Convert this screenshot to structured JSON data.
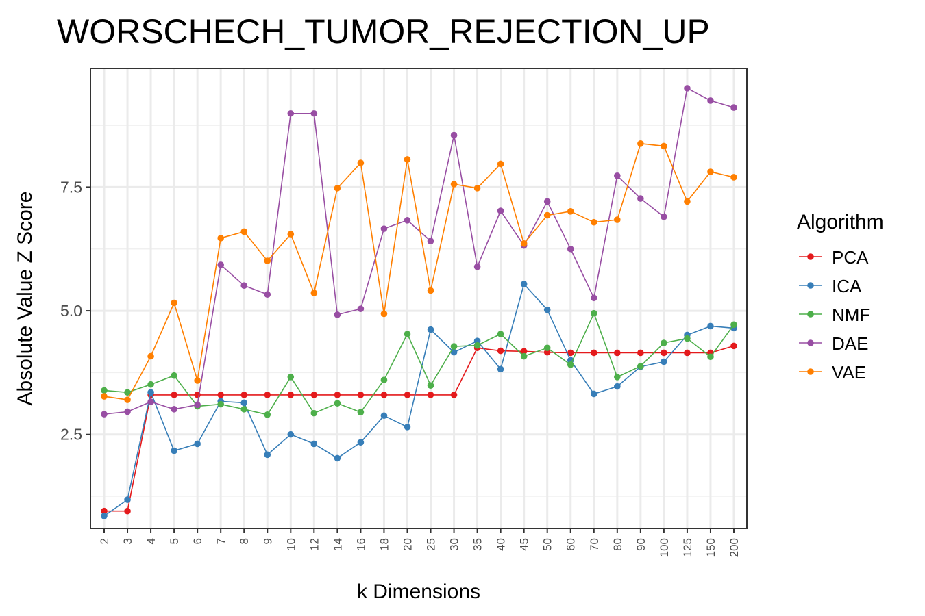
{
  "chart_data": {
    "type": "line",
    "title": "WORSCHECH_TUMOR_REJECTION_UP",
    "xlabel": "k Dimensions",
    "ylabel": "Absolute Value Z Score",
    "categories": [
      "2",
      "3",
      "4",
      "5",
      "6",
      "7",
      "8",
      "9",
      "10",
      "12",
      "14",
      "16",
      "18",
      "20",
      "25",
      "30",
      "35",
      "40",
      "45",
      "50",
      "60",
      "70",
      "80",
      "90",
      "100",
      "125",
      "150",
      "200"
    ],
    "y_ticks": [
      2.5,
      5.0,
      7.5
    ],
    "y_tick_labels": [
      "2.5",
      "5.0",
      "7.5"
    ],
    "ylim": [
      0.6,
      9.9
    ],
    "grid": true,
    "legend": {
      "title": "Algorithm",
      "position": "right"
    },
    "series": [
      {
        "name": "PCA",
        "color": "#e41a1c",
        "values": [
          0.95,
          0.95,
          3.3,
          3.3,
          3.3,
          3.3,
          3.3,
          3.3,
          3.3,
          3.3,
          3.3,
          3.3,
          3.3,
          3.3,
          3.3,
          3.3,
          4.25,
          4.19,
          4.18,
          4.16,
          4.15,
          4.15,
          4.15,
          4.15,
          4.15,
          4.15,
          4.15,
          4.29
        ]
      },
      {
        "name": "ICA",
        "color": "#377eb8",
        "values": [
          0.85,
          1.18,
          3.35,
          2.17,
          2.31,
          3.17,
          3.14,
          2.09,
          2.5,
          2.31,
          2.02,
          2.34,
          2.88,
          2.65,
          4.62,
          4.16,
          4.39,
          3.82,
          5.54,
          5.02,
          4.0,
          3.32,
          3.47,
          3.87,
          3.97,
          4.51,
          4.69,
          4.65
        ]
      },
      {
        "name": "NMF",
        "color": "#4daf4a",
        "values": [
          3.39,
          3.35,
          3.51,
          3.69,
          3.07,
          3.11,
          3.01,
          2.9,
          3.66,
          2.93,
          3.13,
          2.95,
          3.6,
          4.53,
          3.49,
          4.28,
          4.3,
          4.53,
          4.08,
          4.25,
          3.91,
          4.95,
          3.66,
          3.88,
          4.35,
          4.44,
          4.07,
          4.72
        ]
      },
      {
        "name": "DAE",
        "color": "#984ea3",
        "values": [
          2.91,
          2.96,
          3.16,
          3.01,
          3.1,
          5.93,
          5.51,
          5.33,
          8.99,
          8.99,
          4.92,
          5.04,
          6.66,
          6.83,
          6.41,
          8.55,
          5.89,
          7.02,
          6.32,
          7.21,
          6.25,
          5.26,
          7.73,
          7.27,
          6.9,
          9.5,
          9.25,
          9.11
        ]
      },
      {
        "name": "VAE",
        "color": "#ff7f00",
        "values": [
          3.27,
          3.2,
          4.08,
          5.16,
          3.59,
          6.47,
          6.6,
          6.01,
          6.55,
          5.36,
          7.48,
          7.99,
          4.94,
          8.06,
          5.41,
          7.56,
          7.48,
          7.97,
          6.36,
          6.93,
          7.01,
          6.79,
          6.84,
          8.38,
          8.33,
          7.21,
          7.81,
          7.7
        ]
      }
    ]
  }
}
